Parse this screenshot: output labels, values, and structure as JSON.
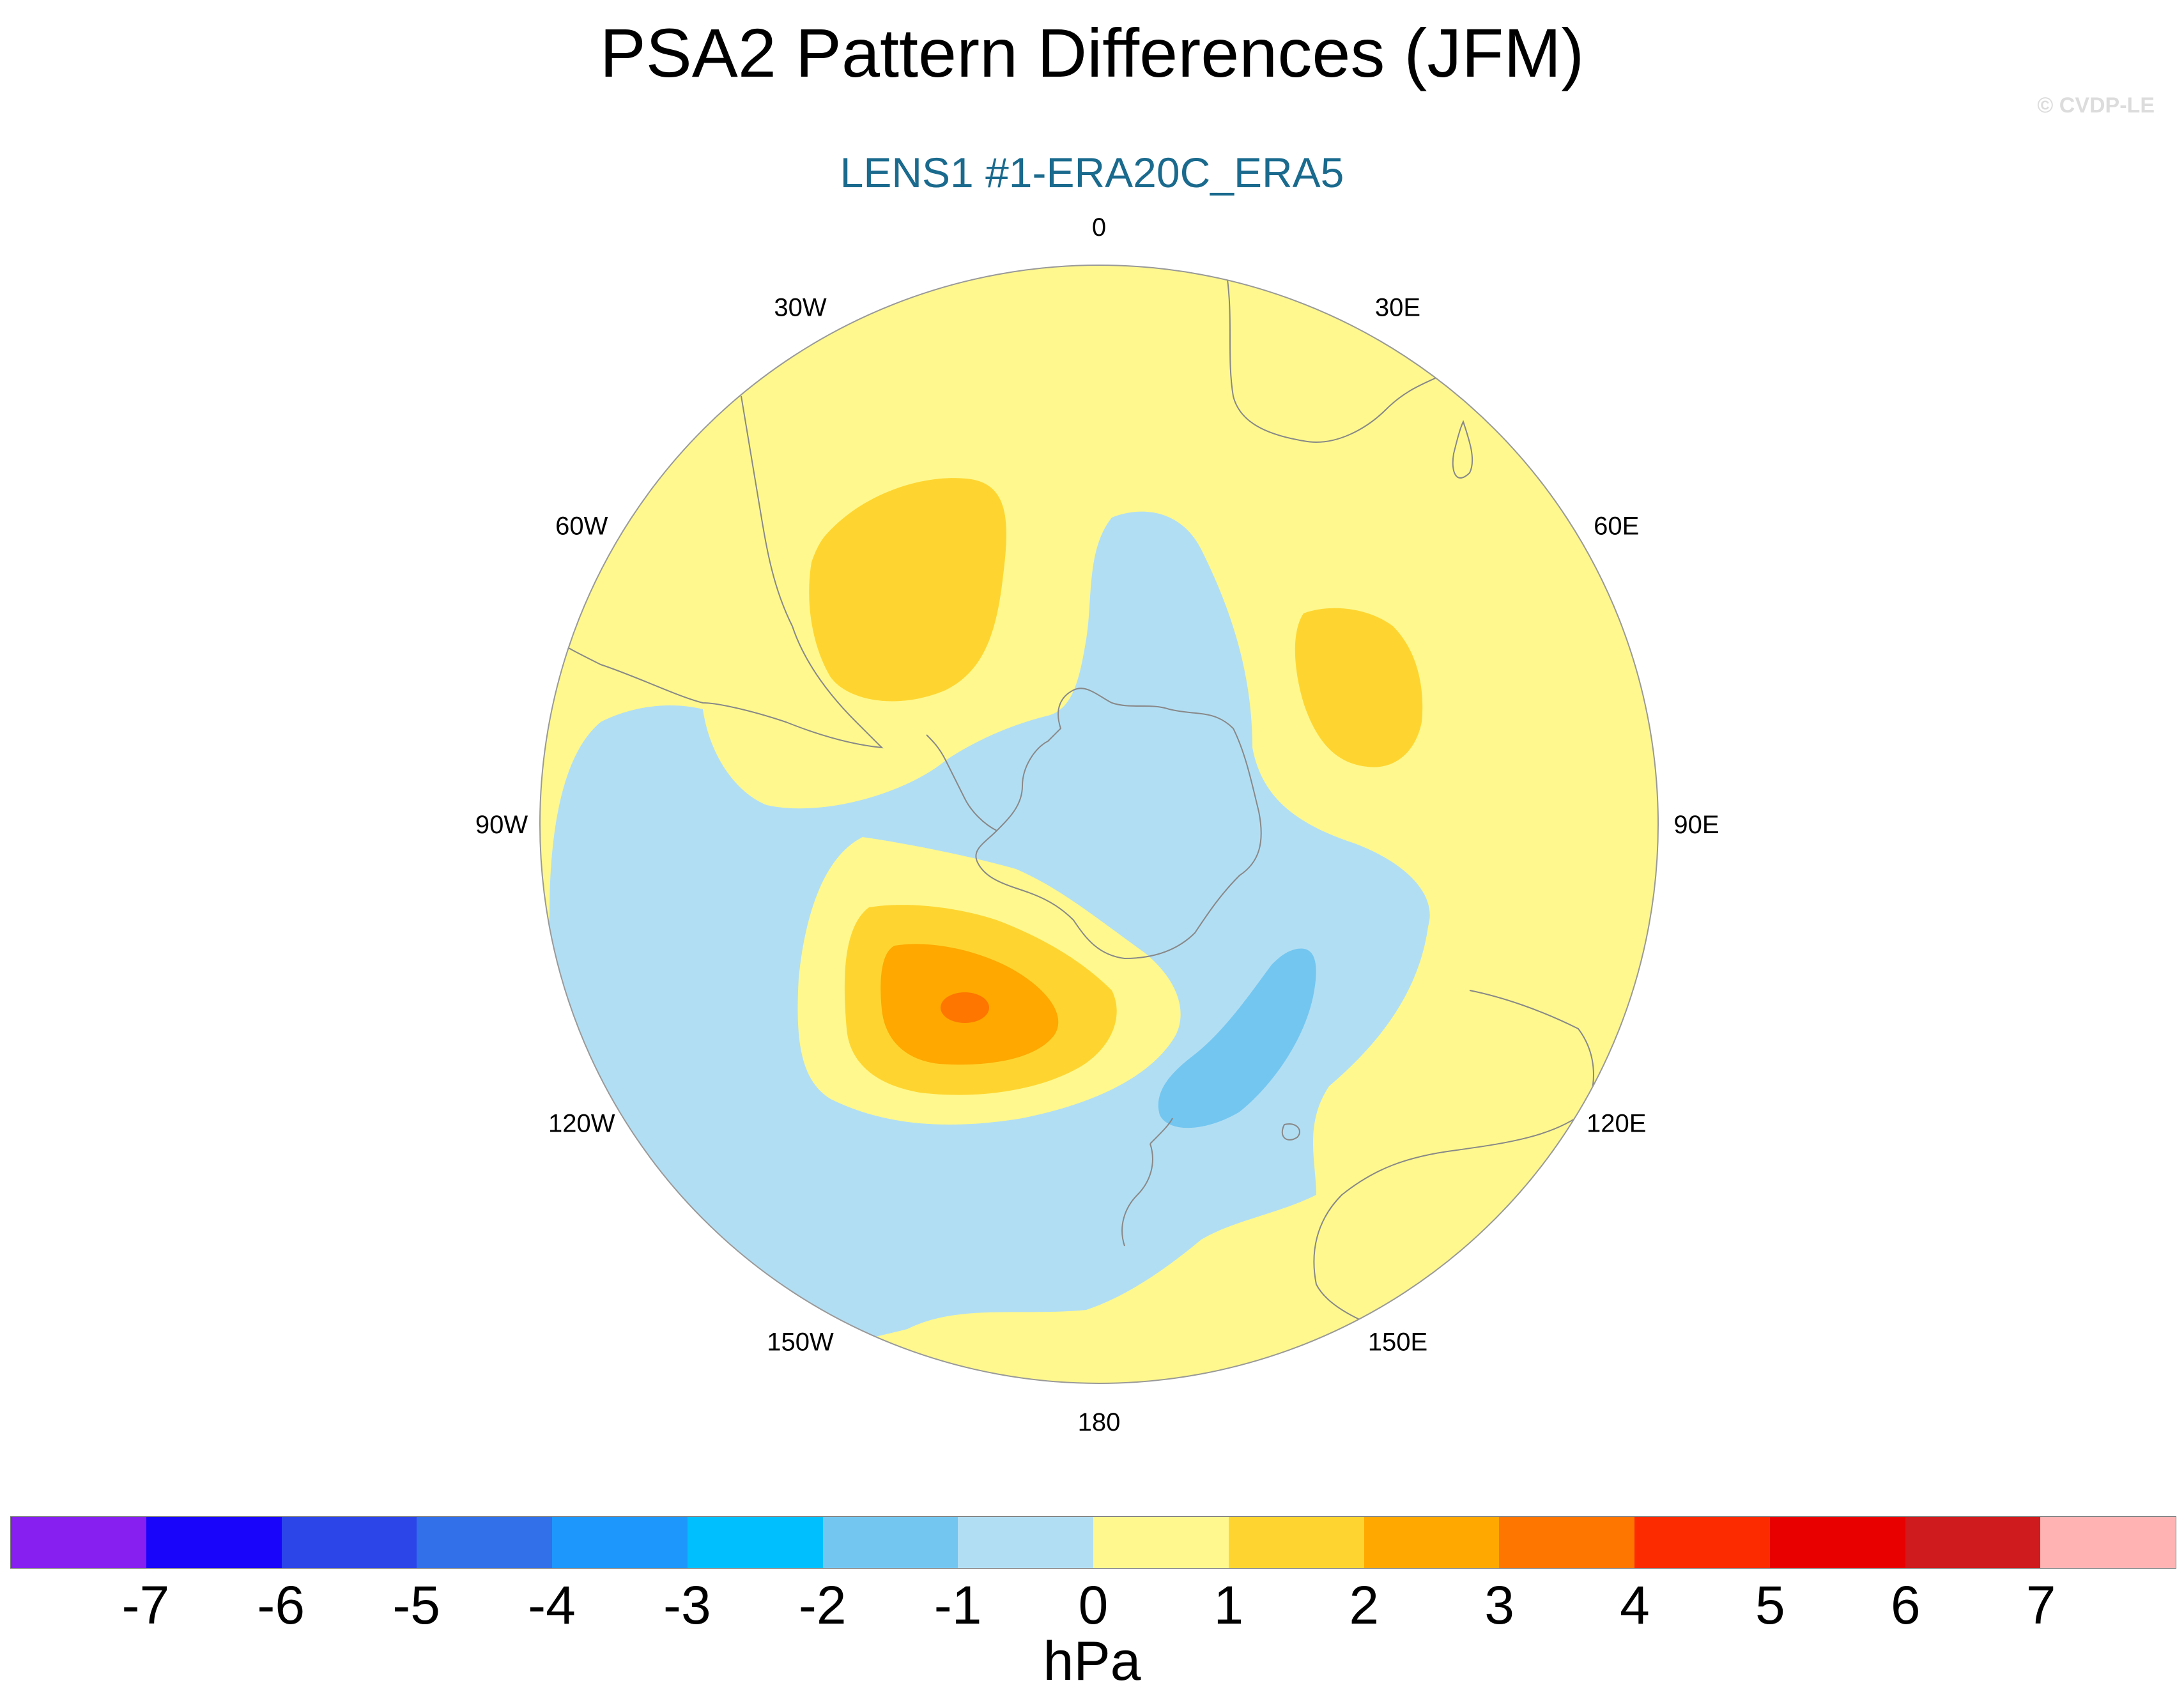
{
  "title": "PSA2 Pattern Differences (JFM)",
  "subtitle": "LENS1 #1-ERA20C_ERA5",
  "watermark": "© CVDP-LE",
  "map": {
    "projection": "south-polar-stereographic",
    "longitude_labels": [
      {
        "deg": 0,
        "text": "0"
      },
      {
        "deg": 30,
        "text": "30E"
      },
      {
        "deg": 60,
        "text": "60E"
      },
      {
        "deg": 90,
        "text": "90E"
      },
      {
        "deg": 120,
        "text": "120E"
      },
      {
        "deg": 150,
        "text": "150E"
      },
      {
        "deg": 180,
        "text": "180"
      },
      {
        "deg": -150,
        "text": "150W"
      },
      {
        "deg": -120,
        "text": "120W"
      },
      {
        "deg": -90,
        "text": "90W"
      },
      {
        "deg": -60,
        "text": "60W"
      },
      {
        "deg": -30,
        "text": "30W"
      }
    ],
    "colors": {
      "background": "#fef88e",
      "neg1": "#b2def3",
      "neg2": "#73c6f0",
      "pos1": "#fed530",
      "pos2": "#fea800",
      "pos3": "#fe7500",
      "coast": "#888888",
      "rim": "#999999"
    }
  },
  "colorbar": {
    "colors": [
      "#861ff0",
      "#1906fa",
      "#2c45e9",
      "#3170e9",
      "#1d97fc",
      "#00bfff",
      "#73c6f0",
      "#b2def3",
      "#fef88e",
      "#fed530",
      "#fea800",
      "#fe7500",
      "#fc2b00",
      "#e80000",
      "#cf1b1d",
      "#ffb3b3"
    ],
    "labels": [
      "-7",
      "-6",
      "-5",
      "-4",
      "-3",
      "-2",
      "-1",
      "0",
      "1",
      "2",
      "3",
      "4",
      "5",
      "6",
      "7"
    ],
    "units": "hPa"
  }
}
